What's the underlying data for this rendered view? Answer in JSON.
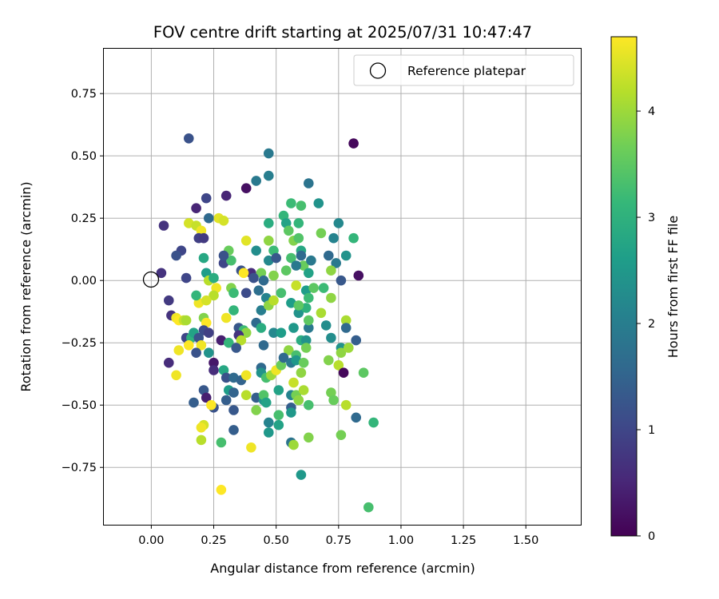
{
  "chart_data": {
    "type": "scatter",
    "title": "FOV centre drift starting at 2025/07/31 10:47:47",
    "xlabel": "Angular distance from reference (arcmin)",
    "ylabel": "Rotation from reference (arcmin)",
    "xlim": [
      -0.19,
      1.72
    ],
    "ylim": [
      -0.98,
      0.93
    ],
    "xticks": [
      0.0,
      0.25,
      0.5,
      0.75,
      1.0,
      1.25,
      1.5
    ],
    "xtick_labels": [
      "0.00",
      "0.25",
      "0.50",
      "0.75",
      "1.00",
      "1.25",
      "1.50"
    ],
    "yticks": [
      -0.75,
      -0.5,
      -0.25,
      0.0,
      0.25,
      0.5,
      0.75
    ],
    "ytick_labels": [
      "−0.75",
      "−0.50",
      "−0.25",
      "0.00",
      "0.25",
      "0.50",
      "0.75"
    ],
    "grid": true,
    "legend": {
      "position": "upper right",
      "entries": [
        "Reference platepar"
      ]
    },
    "reference_point": {
      "x": 0.0,
      "y": 0.0,
      "marker": "open-circle",
      "color": "#000000"
    },
    "colorbar": {
      "label": "Hours from first FF file",
      "colormap": "viridis",
      "range": [
        0,
        4.7
      ],
      "ticks": [
        0,
        1,
        2,
        3,
        4
      ],
      "tick_labels": [
        "0",
        "1",
        "2",
        "3",
        "4"
      ]
    },
    "series": [
      {
        "columns": [
          "x",
          "y",
          "hours"
        ],
        "points": [
          [
            0.81,
            0.55,
            0.1
          ],
          [
            0.15,
            0.57,
            1.2
          ],
          [
            0.47,
            0.51,
            1.9
          ],
          [
            0.38,
            0.37,
            0.2
          ],
          [
            0.47,
            0.42,
            2.0
          ],
          [
            0.42,
            0.4,
            1.9
          ],
          [
            0.22,
            0.33,
            1.0
          ],
          [
            0.3,
            0.34,
            0.5
          ],
          [
            0.63,
            0.39,
            1.8
          ],
          [
            0.67,
            0.31,
            2.4
          ],
          [
            0.56,
            0.31,
            3.2
          ],
          [
            0.6,
            0.3,
            3.3
          ],
          [
            0.18,
            0.29,
            0.5
          ],
          [
            0.05,
            0.22,
            0.7
          ],
          [
            0.23,
            0.25,
            1.6
          ],
          [
            0.27,
            0.25,
            4.5
          ],
          [
            0.15,
            0.23,
            4.4
          ],
          [
            0.18,
            0.22,
            4.3
          ],
          [
            0.2,
            0.2,
            4.6
          ],
          [
            0.29,
            0.24,
            4.4
          ],
          [
            0.53,
            0.26,
            3.1
          ],
          [
            0.54,
            0.23,
            2.7
          ],
          [
            0.47,
            0.23,
            2.9
          ],
          [
            0.59,
            0.23,
            3.1
          ],
          [
            0.75,
            0.23,
            2.2
          ],
          [
            0.55,
            0.2,
            3.5
          ],
          [
            0.68,
            0.19,
            3.7
          ],
          [
            0.12,
            0.12,
            1.0
          ],
          [
            0.19,
            0.17,
            0.9
          ],
          [
            0.21,
            0.17,
            0.8
          ],
          [
            0.1,
            0.1,
            1.2
          ],
          [
            0.31,
            0.12,
            3.6
          ],
          [
            0.38,
            0.16,
            4.5
          ],
          [
            0.47,
            0.16,
            3.9
          ],
          [
            0.57,
            0.16,
            3.8
          ],
          [
            0.59,
            0.17,
            3.4
          ],
          [
            0.6,
            0.12,
            2.8
          ],
          [
            0.73,
            0.17,
            2.1
          ],
          [
            0.81,
            0.17,
            3.1
          ],
          [
            0.49,
            0.12,
            3.2
          ],
          [
            0.42,
            0.12,
            2.3
          ],
          [
            0.21,
            0.09,
            2.8
          ],
          [
            0.29,
            0.07,
            1.0
          ],
          [
            0.32,
            0.08,
            3.3
          ],
          [
            0.29,
            0.1,
            1.2
          ],
          [
            0.36,
            0.04,
            1.2
          ],
          [
            0.4,
            0.03,
            0.6
          ],
          [
            0.44,
            0.03,
            3.7
          ],
          [
            0.47,
            0.08,
            2.2
          ],
          [
            0.5,
            0.09,
            1.3
          ],
          [
            0.56,
            0.09,
            3.3
          ],
          [
            0.6,
            0.1,
            1.6
          ],
          [
            0.61,
            0.06,
            3.6
          ],
          [
            0.64,
            0.08,
            1.9
          ],
          [
            0.71,
            0.1,
            1.6
          ],
          [
            0.74,
            0.07,
            1.9
          ],
          [
            0.78,
            0.1,
            2.4
          ],
          [
            0.04,
            0.03,
            0.7
          ],
          [
            0.14,
            0.01,
            1.0
          ],
          [
            0.22,
            0.03,
            2.6
          ],
          [
            0.23,
            0.0,
            4.2
          ],
          [
            0.25,
            0.01,
            2.9
          ],
          [
            0.37,
            0.03,
            4.7
          ],
          [
            0.41,
            0.01,
            1.2
          ],
          [
            0.45,
            0.0,
            1.6
          ],
          [
            0.49,
            0.02,
            3.8
          ],
          [
            0.54,
            0.04,
            3.5
          ],
          [
            0.58,
            0.06,
            1.9
          ],
          [
            0.63,
            0.03,
            2.7
          ],
          [
            0.72,
            0.04,
            3.9
          ],
          [
            0.76,
            0.0,
            1.3
          ],
          [
            0.83,
            0.02,
            0.2
          ],
          [
            0.26,
            -0.03,
            4.6
          ],
          [
            0.25,
            -0.06,
            4.2
          ],
          [
            0.32,
            -0.03,
            3.8
          ],
          [
            0.33,
            -0.05,
            3.2
          ],
          [
            0.38,
            -0.05,
            1.1
          ],
          [
            0.43,
            -0.04,
            1.7
          ],
          [
            0.46,
            -0.07,
            2.1
          ],
          [
            0.52,
            -0.05,
            3.3
          ],
          [
            0.58,
            -0.02,
            4.3
          ],
          [
            0.62,
            -0.04,
            2.6
          ],
          [
            0.65,
            -0.03,
            3.5
          ],
          [
            0.69,
            -0.03,
            3.2
          ],
          [
            0.72,
            -0.07,
            3.9
          ],
          [
            0.07,
            -0.08,
            0.8
          ],
          [
            0.19,
            -0.09,
            4.6
          ],
          [
            0.22,
            -0.08,
            4.4
          ],
          [
            0.18,
            -0.06,
            3.1
          ],
          [
            0.33,
            -0.12,
            3.1
          ],
          [
            0.44,
            -0.12,
            2.0
          ],
          [
            0.47,
            -0.1,
            3.9
          ],
          [
            0.49,
            -0.08,
            4.2
          ],
          [
            0.56,
            -0.09,
            2.6
          ],
          [
            0.59,
            -0.13,
            2.4
          ],
          [
            0.62,
            -0.11,
            3.0
          ],
          [
            0.59,
            -0.1,
            3.5
          ],
          [
            0.63,
            -0.07,
            3.2
          ],
          [
            0.68,
            -0.13,
            4.1
          ],
          [
            0.08,
            -0.14,
            0.7
          ],
          [
            0.1,
            -0.15,
            4.6
          ],
          [
            0.11,
            -0.16,
            4.7
          ],
          [
            0.13,
            -0.16,
            4.3
          ],
          [
            0.14,
            -0.16,
            4.1
          ],
          [
            0.21,
            -0.15,
            3.8
          ],
          [
            0.22,
            -0.17,
            4.7
          ],
          [
            0.21,
            -0.2,
            1.1
          ],
          [
            0.3,
            -0.15,
            4.6
          ],
          [
            0.35,
            -0.19,
            1.3
          ],
          [
            0.37,
            -0.2,
            3.2
          ],
          [
            0.38,
            -0.21,
            3.9
          ],
          [
            0.42,
            -0.17,
            1.6
          ],
          [
            0.44,
            -0.19,
            2.9
          ],
          [
            0.49,
            -0.21,
            2.2
          ],
          [
            0.52,
            -0.21,
            2.6
          ],
          [
            0.57,
            -0.19,
            2.5
          ],
          [
            0.6,
            -0.24,
            2.9
          ],
          [
            0.63,
            -0.19,
            1.9
          ],
          [
            0.63,
            -0.16,
            3.5
          ],
          [
            0.7,
            -0.18,
            2.3
          ],
          [
            0.78,
            -0.16,
            4.1
          ],
          [
            0.78,
            -0.19,
            1.6
          ],
          [
            0.14,
            -0.23,
            1.0
          ],
          [
            0.16,
            -0.23,
            3.0
          ],
          [
            0.17,
            -0.21,
            2.7
          ],
          [
            0.19,
            -0.23,
            1.2
          ],
          [
            0.2,
            -0.26,
            4.6
          ],
          [
            0.23,
            -0.21,
            0.9
          ],
          [
            0.28,
            -0.24,
            0.4
          ],
          [
            0.31,
            -0.25,
            3.1
          ],
          [
            0.35,
            -0.22,
            0.7
          ],
          [
            0.36,
            -0.24,
            4.2
          ],
          [
            0.45,
            -0.26,
            1.6
          ],
          [
            0.55,
            -0.28,
            3.9
          ],
          [
            0.58,
            -0.3,
            3.3
          ],
          [
            0.62,
            -0.24,
            2.4
          ],
          [
            0.62,
            -0.27,
            3.7
          ],
          [
            0.72,
            -0.23,
            2.3
          ],
          [
            0.76,
            -0.27,
            2.4
          ],
          [
            0.76,
            -0.29,
            3.9
          ],
          [
            0.79,
            -0.27,
            4.0
          ],
          [
            0.82,
            -0.24,
            1.4
          ],
          [
            0.11,
            -0.28,
            4.6
          ],
          [
            0.15,
            -0.26,
            4.7
          ],
          [
            0.18,
            -0.29,
            1.2
          ],
          [
            0.23,
            -0.29,
            2.4
          ],
          [
            0.34,
            -0.27,
            1.3
          ],
          [
            0.07,
            -0.33,
            0.6
          ],
          [
            0.25,
            -0.33,
            0.3
          ],
          [
            0.25,
            -0.36,
            0.6
          ],
          [
            0.29,
            -0.36,
            2.8
          ],
          [
            0.3,
            -0.39,
            1.2
          ],
          [
            0.33,
            -0.39,
            1.6
          ],
          [
            0.36,
            -0.4,
            1.5
          ],
          [
            0.38,
            -0.38,
            4.6
          ],
          [
            0.44,
            -0.35,
            1.6
          ],
          [
            0.44,
            -0.37,
            2.4
          ],
          [
            0.46,
            -0.39,
            3.3
          ],
          [
            0.48,
            -0.38,
            4.0
          ],
          [
            0.5,
            -0.36,
            4.6
          ],
          [
            0.52,
            -0.34,
            3.6
          ],
          [
            0.53,
            -0.31,
            1.6
          ],
          [
            0.56,
            -0.33,
            1.9
          ],
          [
            0.58,
            -0.32,
            2.5
          ],
          [
            0.6,
            -0.37,
            3.9
          ],
          [
            0.61,
            -0.33,
            3.6
          ],
          [
            0.71,
            -0.32,
            3.8
          ],
          [
            0.75,
            -0.34,
            4.2
          ],
          [
            0.77,
            -0.37,
            0.1
          ],
          [
            0.85,
            -0.37,
            3.5
          ],
          [
            0.1,
            -0.38,
            4.6
          ],
          [
            0.21,
            -0.44,
            1.3
          ],
          [
            0.22,
            -0.47,
            0.4
          ],
          [
            0.25,
            -0.51,
            1.2
          ],
          [
            0.3,
            -0.48,
            1.4
          ],
          [
            0.31,
            -0.44,
            2.6
          ],
          [
            0.33,
            -0.45,
            1.5
          ],
          [
            0.38,
            -0.46,
            4.2
          ],
          [
            0.42,
            -0.47,
            1.4
          ],
          [
            0.45,
            -0.48,
            2.4
          ],
          [
            0.45,
            -0.46,
            3.4
          ],
          [
            0.46,
            -0.49,
            2.7
          ],
          [
            0.51,
            -0.44,
            2.7
          ],
          [
            0.56,
            -0.46,
            2.1
          ],
          [
            0.57,
            -0.41,
            4.3
          ],
          [
            0.58,
            -0.46,
            3.7
          ],
          [
            0.59,
            -0.48,
            3.9
          ],
          [
            0.61,
            -0.44,
            4.1
          ],
          [
            0.63,
            -0.5,
            3.3
          ],
          [
            0.72,
            -0.45,
            3.7
          ],
          [
            0.73,
            -0.48,
            3.6
          ],
          [
            0.78,
            -0.5,
            4.2
          ],
          [
            0.82,
            -0.55,
            1.6
          ],
          [
            0.17,
            -0.49,
            1.4
          ],
          [
            0.24,
            -0.5,
            4.7
          ],
          [
            0.33,
            -0.52,
            1.3
          ],
          [
            0.42,
            -0.52,
            3.8
          ],
          [
            0.47,
            -0.57,
            2.1
          ],
          [
            0.51,
            -0.54,
            3.3
          ],
          [
            0.51,
            -0.58,
            2.7
          ],
          [
            0.56,
            -0.51,
            1.4
          ],
          [
            0.56,
            -0.53,
            2.5
          ],
          [
            0.21,
            -0.58,
            4.4
          ],
          [
            0.2,
            -0.59,
            4.6
          ],
          [
            0.33,
            -0.6,
            1.4
          ],
          [
            0.47,
            -0.61,
            2.5
          ],
          [
            0.56,
            -0.65,
            1.8
          ],
          [
            0.57,
            -0.66,
            4.0
          ],
          [
            0.63,
            -0.63,
            3.8
          ],
          [
            0.76,
            -0.62,
            3.7
          ],
          [
            0.89,
            -0.57,
            3.1
          ],
          [
            0.2,
            -0.64,
            4.2
          ],
          [
            0.28,
            -0.65,
            3.3
          ],
          [
            0.4,
            -0.67,
            4.6
          ],
          [
            0.6,
            -0.78,
            2.5
          ],
          [
            0.28,
            -0.84,
            4.7
          ],
          [
            0.87,
            -0.91,
            3.3
          ]
        ]
      }
    ]
  }
}
